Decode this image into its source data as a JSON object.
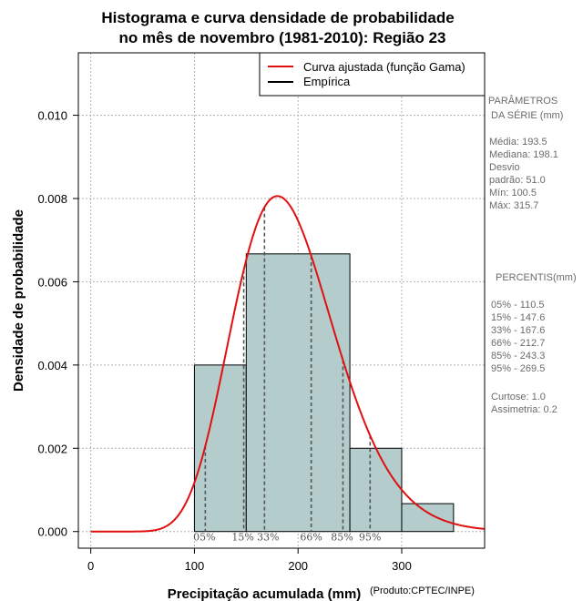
{
  "chart_data": {
    "type": "bar",
    "title_line1": "Histograma e curva densidade de probabilidade",
    "title_line2": "no mês de novembro (1981-2010): Região 23",
    "xlabel": "Precipitação acumulada (mm)",
    "ylabel": "Densidade de probabilidade",
    "credit": "(Produto:CPTEC/INPE)",
    "xlim": [
      -12,
      380
    ],
    "ylim": [
      -0.0004,
      0.0115
    ],
    "x_ticks": [
      0,
      100,
      200,
      300
    ],
    "y_ticks": [
      0.0,
      0.002,
      0.004,
      0.006,
      0.008,
      0.01
    ],
    "y_tick_labels": [
      "0.000",
      "0.002",
      "0.004",
      "0.006",
      "0.008",
      "0.010"
    ],
    "grid": true,
    "bar_color": "#b4cccc",
    "curve_color": "#e01010",
    "histogram": [
      {
        "start": 100,
        "end": 150,
        "density": 0.004
      },
      {
        "start": 150,
        "end": 250,
        "density": 0.00667
      },
      {
        "start": 250,
        "end": 300,
        "density": 0.002
      },
      {
        "start": 300,
        "end": 350,
        "density": 0.00067
      }
    ],
    "gamma_fit": {
      "shape": 14.4,
      "scale": 13.44
    },
    "percentiles": [
      {
        "label": "05%",
        "value": 110.5
      },
      {
        "label": "15%",
        "value": 147.6
      },
      {
        "label": "33%",
        "value": 167.6
      },
      {
        "label": "66%",
        "value": 212.7
      },
      {
        "label": "85%",
        "value": 243.3
      },
      {
        "label": "95%",
        "value": 269.5
      }
    ],
    "legend": [
      {
        "label": "Curva ajustada (função Gama)",
        "color": "#e01010"
      },
      {
        "label": "Empírica",
        "color": "#000000"
      }
    ]
  },
  "side_panel": {
    "params_title_1": "PARÂMETROS",
    "params_title_2": "DA SÉRIE (mm)",
    "params": [
      "Média:  193.5",
      "Mediana:  198.1",
      "Desvio",
      "padrão:  51.0",
      "Mín:  100.5",
      "Máx:  315.7"
    ],
    "percentis_title": "PERCENTIS(mm)",
    "percentis": [
      "05% -  110.5",
      "15% -  147.6",
      "33% -  167.6",
      "66% -  212.7",
      "85% -  243.3",
      "95% -  269.5"
    ],
    "stats": [
      "Curtose:  1.0",
      "Assimetria:  0.2"
    ]
  }
}
